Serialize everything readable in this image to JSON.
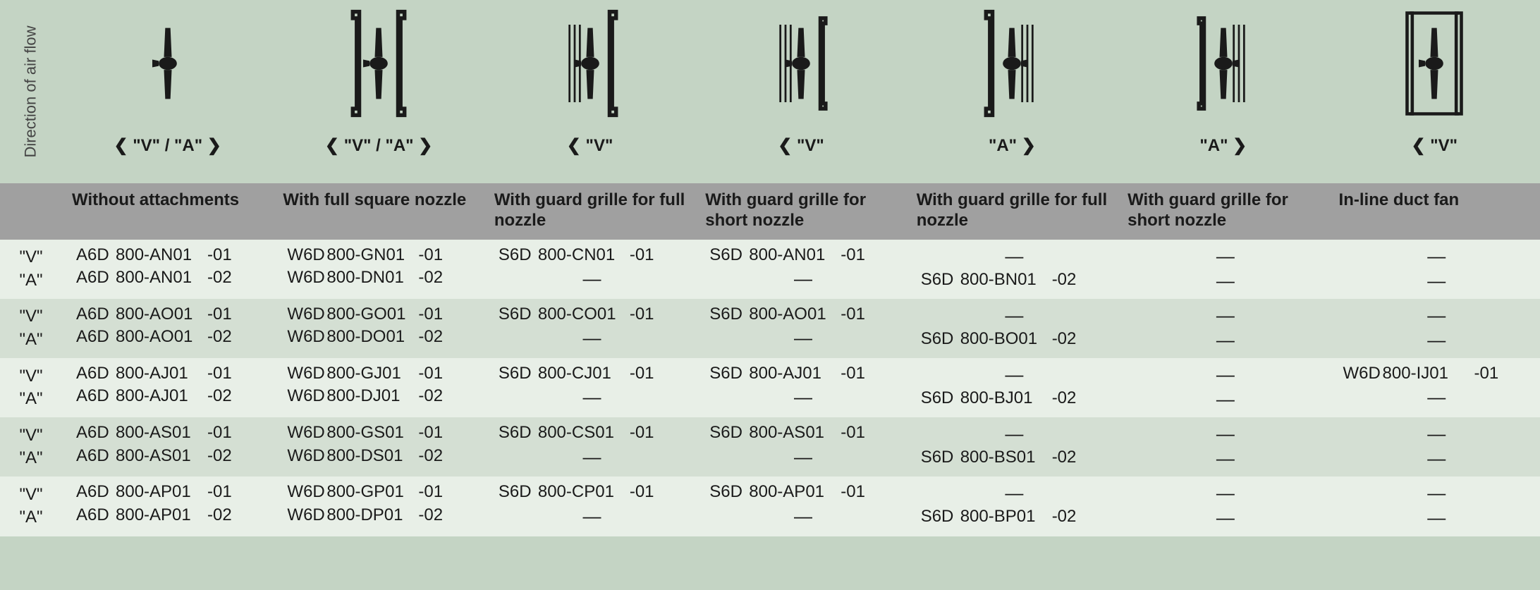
{
  "sidebar_label": "Direction of air flow",
  "columns": [
    {
      "direction": "❮  \"V\" / \"A\"  ❯",
      "desc": "Without attachments"
    },
    {
      "direction": "❮  \"V\" / \"A\"  ❯",
      "desc": "With full square nozzle"
    },
    {
      "direction": "❮  \"V\"",
      "desc": "With guard grille for full nozzle"
    },
    {
      "direction": "❮  \"V\"",
      "desc": "With guard grille for short nozzle"
    },
    {
      "direction": "\"A\"  ❯",
      "desc": "With guard grille for full nozzle"
    },
    {
      "direction": "\"A\"  ❯",
      "desc": "With guard grille for short nozzle"
    },
    {
      "direction": "❮  \"V\"",
      "desc": "In-line duct fan"
    }
  ],
  "row_labels": {
    "v": "\"V\"",
    "a": "\"A\""
  },
  "rows": [
    {
      "v": [
        "A6D 800-AN01 -01",
        "W6D 800-GN01 -01",
        "S6D 800-CN01 -01",
        "S6D 800-AN01 -01",
        "—",
        "—",
        "—"
      ],
      "a": [
        "A6D 800-AN01 -02",
        "W6D 800-DN01 -02",
        "—",
        "—",
        "S6D 800-BN01 -02",
        "—",
        "—"
      ]
    },
    {
      "v": [
        "A6D 800-AO01 -01",
        "W6D 800-GO01 -01",
        "S6D 800-CO01 -01",
        "S6D 800-AO01 -01",
        "—",
        "—",
        "—"
      ],
      "a": [
        "A6D 800-AO01 -02",
        "W6D 800-DO01 -02",
        "—",
        "—",
        "S6D 800-BO01 -02",
        "—",
        "—"
      ]
    },
    {
      "v": [
        "A6D 800-AJ01 -01",
        "W6D 800-GJ01 -01",
        "S6D 800-CJ01 -01",
        "S6D 800-AJ01 -01",
        "—",
        "—",
        "W6D 800-IJ01 -01"
      ],
      "a": [
        "A6D 800-AJ01 -02",
        "W6D 800-DJ01 -02",
        "—",
        "—",
        "S6D 800-BJ01 -02",
        "—",
        "—"
      ]
    },
    {
      "v": [
        "A6D 800-AS01 -01",
        "W6D 800-GS01 -01",
        "S6D 800-CS01 -01",
        "S6D 800-AS01 -01",
        "—",
        "—",
        "—"
      ],
      "a": [
        "A6D 800-AS01 -02",
        "W6D 800-DS01 -02",
        "—",
        "—",
        "S6D 800-BS01 -02",
        "—",
        "—"
      ]
    },
    {
      "v": [
        "A6D 800-AP01 -01",
        "W6D 800-GP01 -01",
        "S6D 800-CP01 -01",
        "S6D 800-AP01 -01",
        "—",
        "—",
        "—"
      ],
      "a": [
        "A6D 800-AP01 -02",
        "W6D 800-DP01 -02",
        "—",
        "—",
        "S6D 800-BP01 -02",
        "—",
        "—"
      ]
    }
  ],
  "colors": {
    "page_bg": "#c4d4c4",
    "desc_bg": "#a0a0a0",
    "row_odd_bg": "#e8efe7",
    "row_even_bg": "#d4dfd3",
    "text": "#1a1a1a"
  },
  "typography": {
    "base_pt": 18,
    "header_pt": 18,
    "weight_header": 700
  },
  "icons": [
    "fan-plain",
    "fan-square-nozzle",
    "fan-guard-full-v",
    "fan-guard-short-v",
    "fan-guard-full-a",
    "fan-guard-short-a",
    "fan-inline-duct"
  ]
}
